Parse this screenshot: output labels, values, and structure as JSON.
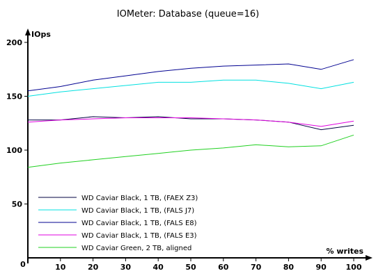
{
  "chart_data": {
    "type": "line",
    "title": "IOMeter: Database (queue=16)",
    "xlabel": "% writes",
    "ylabel": "IOps",
    "x": [
      0,
      10,
      20,
      30,
      40,
      50,
      60,
      70,
      80,
      90,
      100
    ],
    "xlim": [
      0,
      100
    ],
    "ylim": [
      0,
      200
    ],
    "x_ticks": [
      10,
      20,
      30,
      40,
      50,
      60,
      70,
      80,
      90,
      100
    ],
    "y_ticks": [
      50,
      100,
      150,
      200
    ],
    "origin_label": "0",
    "grid": false,
    "legend_position": "bottom-left",
    "series": [
      {
        "name": "WD Caviar Black, 1 TB, (FAEX Z3)",
        "color": "#000040",
        "values": [
          128,
          128,
          131,
          130,
          131,
          129,
          129,
          128,
          126,
          119,
          123
        ]
      },
      {
        "name": "WD Caviar Black, 1 TB, (FALS J7)",
        "color": "#00e0e0",
        "values": [
          150,
          154,
          157,
          160,
          163,
          163,
          165,
          165,
          162,
          157,
          163
        ]
      },
      {
        "name": "WD Caviar Black, 1 TB, (FALS E8)",
        "color": "#000090",
        "values": [
          155,
          159,
          165,
          169,
          173,
          176,
          178,
          179,
          180,
          175,
          184
        ]
      },
      {
        "name": "WD Caviar Black, 1 TB, (FALS E3)",
        "color": "#e000e0",
        "values": [
          126,
          128,
          129,
          130,
          130,
          130,
          129,
          128,
          126,
          122,
          127
        ]
      },
      {
        "name": "WD Caviar Green, 2 TB, aligned",
        "color": "#20d020",
        "values": [
          84,
          88,
          91,
          94,
          97,
          100,
          102,
          105,
          103,
          104,
          114
        ]
      }
    ]
  }
}
